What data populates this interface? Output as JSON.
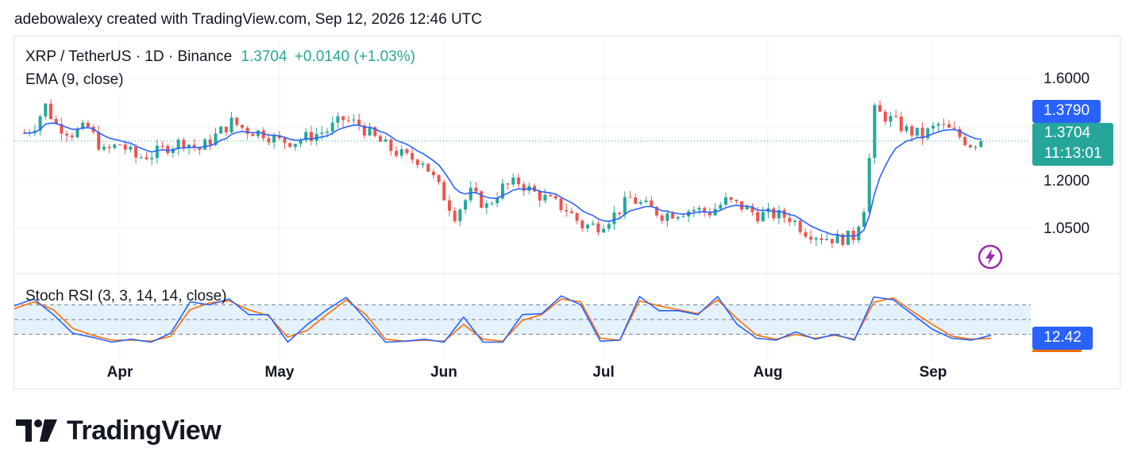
{
  "attribution": "adebowalexy created with TradingView.com, Sep 12, 2026 12:46 UTC",
  "legend": {
    "symbol": "XRP / TetherUS · 1D · Binance",
    "price": "1.3704",
    "change": "+0.0140 (+1.03%)",
    "ema": "EMA (9, close)",
    "stoch": "Stoch RSI (3, 3, 14, 14, close)"
  },
  "price_tags": {
    "ema_value": "1.3790",
    "last_price": "1.3704",
    "countdown": "11:13:01",
    "stoch_value": "12.42"
  },
  "brand": "TradingView",
  "colors": {
    "up": "#26a69a",
    "down": "#ef5350",
    "ema": "#2962ff",
    "stoch_k": "#2962ff",
    "stoch_d": "#ff6d00",
    "band": "#e3f2fd"
  },
  "chart_data": {
    "type": "candlestick",
    "symbol": "XRP / TetherUS",
    "interval": "1D",
    "y_ticks": [
      "1.6000",
      "1.2000",
      "1.0500"
    ],
    "x_ticks": [
      "Apr",
      "May",
      "Jun",
      "Jul",
      "Aug",
      "Sep"
    ],
    "ylim": [
      0.875,
      1.725
    ],
    "close_series": [
      {
        "date": "2026-03-14",
        "close": 1.4
      },
      {
        "date": "2026-03-16",
        "close": 1.43
      },
      {
        "date": "2026-03-18",
        "close": 1.5
      },
      {
        "date": "2026-03-20",
        "close": 1.43
      },
      {
        "date": "2026-03-23",
        "close": 1.4
      },
      {
        "date": "2026-03-26",
        "close": 1.42
      },
      {
        "date": "2026-03-29",
        "close": 1.33
      },
      {
        "date": "2026-04-01",
        "close": 1.36
      },
      {
        "date": "2026-04-04",
        "close": 1.31
      },
      {
        "date": "2026-04-07",
        "close": 1.32
      },
      {
        "date": "2026-04-10",
        "close": 1.35
      },
      {
        "date": "2026-04-13",
        "close": 1.37
      },
      {
        "date": "2026-04-16",
        "close": 1.34
      },
      {
        "date": "2026-04-19",
        "close": 1.39
      },
      {
        "date": "2026-04-22",
        "close": 1.44
      },
      {
        "date": "2026-04-25",
        "close": 1.41
      },
      {
        "date": "2026-04-28",
        "close": 1.4
      },
      {
        "date": "2026-05-01",
        "close": 1.37
      },
      {
        "date": "2026-05-04",
        "close": 1.37
      },
      {
        "date": "2026-05-07",
        "close": 1.39
      },
      {
        "date": "2026-05-10",
        "close": 1.41
      },
      {
        "date": "2026-05-13",
        "close": 1.45
      },
      {
        "date": "2026-05-16",
        "close": 1.43
      },
      {
        "date": "2026-05-19",
        "close": 1.38
      },
      {
        "date": "2026-05-22",
        "close": 1.34
      },
      {
        "date": "2026-05-25",
        "close": 1.31
      },
      {
        "date": "2026-05-28",
        "close": 1.3
      },
      {
        "date": "2026-05-31",
        "close": 1.2
      },
      {
        "date": "2026-06-03",
        "close": 1.1
      },
      {
        "date": "2026-06-06",
        "close": 1.18
      },
      {
        "date": "2026-06-09",
        "close": 1.13
      },
      {
        "date": "2026-06-12",
        "close": 1.2
      },
      {
        "date": "2026-06-15",
        "close": 1.22
      },
      {
        "date": "2026-06-18",
        "close": 1.18
      },
      {
        "date": "2026-06-21",
        "close": 1.15
      },
      {
        "date": "2026-06-24",
        "close": 1.12
      },
      {
        "date": "2026-06-27",
        "close": 1.06
      },
      {
        "date": "2026-06-30",
        "close": 1.06
      },
      {
        "date": "2026-07-03",
        "close": 1.1
      },
      {
        "date": "2026-07-06",
        "close": 1.16
      },
      {
        "date": "2026-07-09",
        "close": 1.13
      },
      {
        "date": "2026-07-12",
        "close": 1.1
      },
      {
        "date": "2026-07-15",
        "close": 1.11
      },
      {
        "date": "2026-07-18",
        "close": 1.12
      },
      {
        "date": "2026-07-21",
        "close": 1.11
      },
      {
        "date": "2026-07-24",
        "close": 1.15
      },
      {
        "date": "2026-07-27",
        "close": 1.13
      },
      {
        "date": "2026-07-30",
        "close": 1.1
      },
      {
        "date": "2026-08-02",
        "close": 1.1
      },
      {
        "date": "2026-08-05",
        "close": 1.09
      },
      {
        "date": "2026-08-08",
        "close": 1.04
      },
      {
        "date": "2026-08-11",
        "close": 1.02
      },
      {
        "date": "2026-08-14",
        "close": 1.01
      },
      {
        "date": "2026-08-17",
        "close": 1.02
      },
      {
        "date": "2026-08-19",
        "close": 1.13
      },
      {
        "date": "2026-08-21",
        "close": 1.48
      },
      {
        "date": "2026-08-24",
        "close": 1.45
      },
      {
        "date": "2026-08-27",
        "close": 1.41
      },
      {
        "date": "2026-08-30",
        "close": 1.39
      },
      {
        "date": "2026-09-02",
        "close": 1.43
      },
      {
        "date": "2026-09-05",
        "close": 1.4
      },
      {
        "date": "2026-09-08",
        "close": 1.36
      },
      {
        "date": "2026-09-10",
        "close": 1.3704
      }
    ],
    "ema": {
      "name": "EMA (9, close)",
      "last": 1.379
    },
    "stoch_rsi": {
      "name": "Stoch RSI (3, 3, 14, 14, close)",
      "levels": [
        80,
        50,
        20
      ],
      "k": [
        78,
        92,
        60,
        22,
        14,
        4,
        10,
        4,
        22,
        86,
        80,
        92,
        60,
        60,
        4,
        40,
        70,
        95,
        50,
        4,
        6,
        10,
        4,
        55,
        4,
        4,
        60,
        62,
        98,
        80,
        6,
        8,
        97,
        68,
        68,
        60,
        97,
        40,
        12,
        8,
        25,
        10,
        20,
        8,
        96,
        90,
        60,
        30,
        12,
        8,
        18
      ],
      "d": [
        72,
        86,
        70,
        32,
        18,
        8,
        8,
        6,
        16,
        70,
        84,
        88,
        70,
        58,
        14,
        28,
        60,
        90,
        60,
        10,
        6,
        8,
        6,
        40,
        10,
        6,
        48,
        60,
        92,
        86,
        12,
        8,
        88,
        78,
        70,
        62,
        90,
        52,
        18,
        10,
        20,
        12,
        18,
        10,
        85,
        94,
        66,
        40,
        16,
        10,
        12
      ],
      "last": 12.42
    }
  }
}
